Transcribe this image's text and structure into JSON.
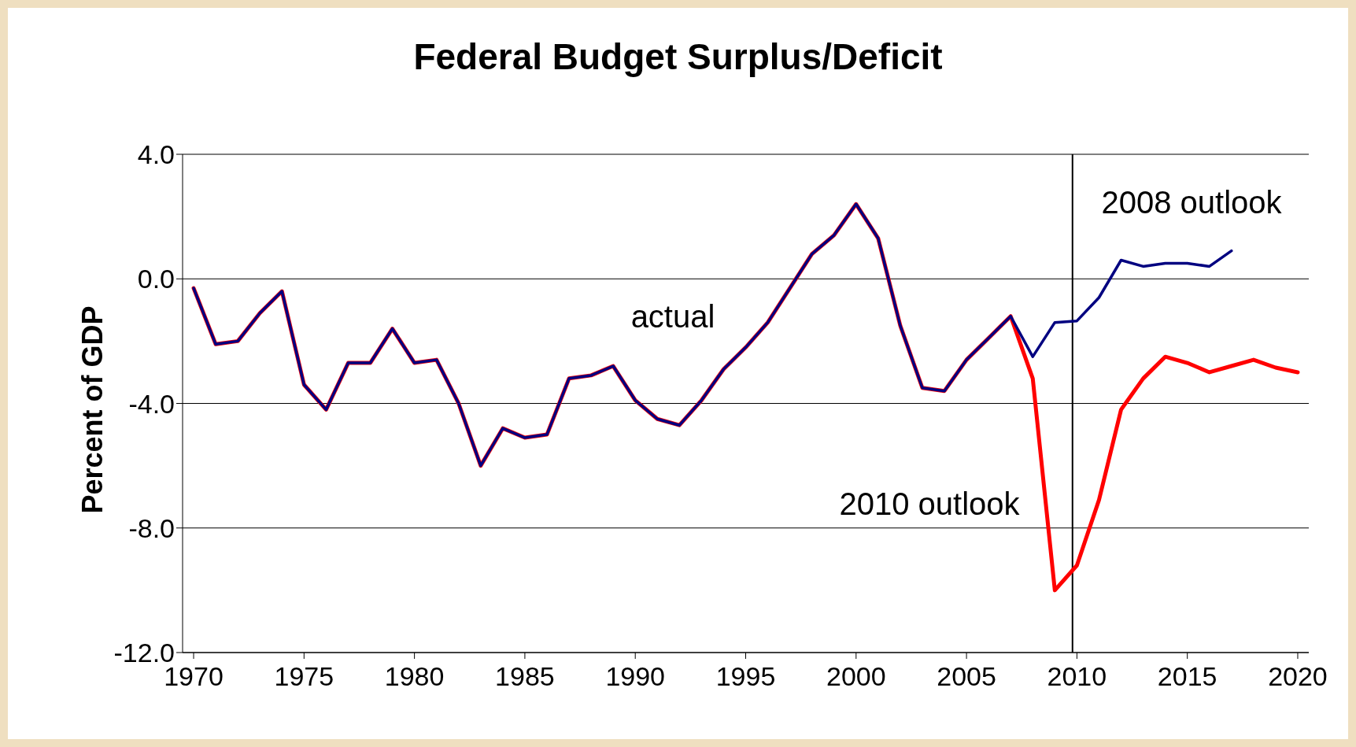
{
  "chart_data": {
    "type": "line",
    "title": "Federal Budget Surplus/Deficit",
    "ylabel": "Percent of GDP",
    "x": [
      1970,
      1971,
      1972,
      1973,
      1974,
      1975,
      1976,
      1977,
      1978,
      1979,
      1980,
      1981,
      1982,
      1983,
      1984,
      1985,
      1986,
      1987,
      1988,
      1989,
      1990,
      1991,
      1992,
      1993,
      1994,
      1995,
      1996,
      1997,
      1998,
      1999,
      2000,
      2001,
      2002,
      2003,
      2004,
      2005,
      2006,
      2007,
      2008,
      2009,
      2010,
      2011,
      2012,
      2013,
      2014,
      2015,
      2016,
      2017,
      2018,
      2019,
      2020
    ],
    "series": [
      {
        "color": "#ff0000",
        "values": [
          -0.3,
          -2.1,
          -2.0,
          -1.1,
          -0.4,
          -3.4,
          -4.2,
          -2.7,
          -2.7,
          -1.6,
          -2.7,
          -2.6,
          -4.0,
          -6.0,
          -4.8,
          -5.1,
          -5.0,
          -3.2,
          -3.1,
          -2.8,
          -3.9,
          -4.5,
          -4.7,
          -3.9,
          -2.9,
          -2.2,
          -1.4,
          -0.3,
          0.8,
          1.4,
          2.4,
          1.3,
          -1.5,
          -3.5,
          -3.6,
          -2.6,
          -1.9,
          -1.2,
          -3.2,
          -10.0,
          -9.2,
          -7.1,
          -4.2,
          -3.2,
          -2.5,
          -2.7,
          -3.0,
          -2.8,
          -2.6,
          -2.85,
          -3.0
        ]
      },
      {
        "color": "#000080",
        "values": [
          -0.3,
          -2.1,
          -2.0,
          -1.1,
          -0.4,
          -3.4,
          -4.2,
          -2.7,
          -2.7,
          -1.6,
          -2.7,
          -2.6,
          -4.0,
          -6.0,
          -4.8,
          -5.1,
          -5.0,
          -3.2,
          -3.1,
          -2.8,
          -3.9,
          -4.5,
          -4.7,
          -3.9,
          -2.9,
          -2.2,
          -1.4,
          -0.3,
          0.8,
          1.4,
          2.4,
          1.3,
          -1.5,
          -3.5,
          -3.6,
          -2.6,
          -1.9,
          -1.2,
          -2.5,
          -1.4,
          -1.35,
          -0.6,
          0.6,
          0.4,
          0.5,
          0.5,
          0.4,
          0.9,
          null,
          null,
          null
        ]
      }
    ],
    "xlim": [
      1969.5,
      2020.5
    ],
    "xticks": [
      1970,
      1975,
      1980,
      1985,
      1990,
      1995,
      2000,
      2005,
      2010,
      2015,
      2020
    ],
    "ylim": [
      -12,
      4
    ],
    "yticks": [
      {
        "value": -12,
        "label": "-12.0"
      },
      {
        "value": -8,
        "label": "-8.0"
      },
      {
        "value": -4,
        "label": "-4.0"
      },
      {
        "value": 0,
        "label": "0.0"
      },
      {
        "value": 4,
        "label": "4.0"
      }
    ],
    "grid": "y",
    "marker": "none",
    "line_style": "solid",
    "ref_lines": [
      {
        "axis": "x",
        "value": 2009.8,
        "color": "#000000"
      }
    ],
    "annotations": [
      "2008 outlook",
      "actual",
      "2010 outlook"
    ]
  }
}
